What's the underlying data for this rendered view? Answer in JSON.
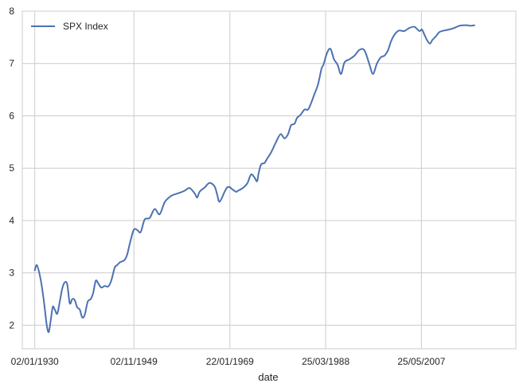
{
  "chart_data": {
    "type": "line",
    "title": "",
    "xlabel": "date",
    "ylabel": "",
    "ylim": [
      1.55,
      8.0
    ],
    "xlim": [
      1927.5,
      2026.3
    ],
    "grid": true,
    "legend_position": "top-left",
    "y_ticks": [
      2,
      3,
      4,
      5,
      6,
      7,
      8
    ],
    "x_ticks": [
      {
        "label": "02/01/1930",
        "year": 1930.0
      },
      {
        "label": "02/11/1949",
        "year": 1949.84
      },
      {
        "label": "22/01/1969",
        "year": 1969.06
      },
      {
        "label": "25/03/1988",
        "year": 1988.23
      },
      {
        "label": "25/05/2007",
        "year": 2007.4
      }
    ],
    "series": [
      {
        "name": "SPX Index",
        "color": "#4c72b0",
        "x": [
          1930.0,
          1930.4,
          1930.9,
          1931.4,
          1931.9,
          1932.4,
          1932.8,
          1933.2,
          1933.6,
          1934.0,
          1934.5,
          1935.0,
          1935.5,
          1936.0,
          1936.5,
          1937.0,
          1937.5,
          1938.0,
          1938.5,
          1939.0,
          1939.5,
          1940.0,
          1940.6,
          1941.2,
          1941.7,
          1942.2,
          1942.7,
          1943.3,
          1944.0,
          1944.7,
          1945.3,
          1946.0,
          1946.5,
          1947.0,
          1947.5,
          1948.0,
          1948.5,
          1949.0,
          1949.8,
          1950.5,
          1951.2,
          1952.0,
          1953.0,
          1954.0,
          1955.0,
          1956.0,
          1957.0,
          1957.5,
          1958.0,
          1959.0,
          1960.0,
          1961.0,
          1962.0,
          1962.5,
          1963.0,
          1964.0,
          1965.0,
          1966.0,
          1966.5,
          1967.0,
          1968.0,
          1968.5,
          1969.0,
          1969.5,
          1970.3,
          1970.7,
          1971.3,
          1972.0,
          1972.6,
          1973.3,
          1974.0,
          1974.5,
          1974.8,
          1975.3,
          1976.0,
          1976.5,
          1977.3,
          1978.3,
          1979.2,
          1980.0,
          1980.7,
          1981.3,
          1982.0,
          1982.5,
          1983.2,
          1984.0,
          1984.7,
          1985.3,
          1986.0,
          1986.7,
          1987.4,
          1987.8,
          1988.5,
          1989.2,
          1989.9,
          1990.6,
          1991.3,
          1992.0,
          1993.0,
          1994.0,
          1995.0,
          1996.0,
          1997.0,
          1997.7,
          1998.5,
          1999.3,
          2000.0,
          2000.7,
          2001.3,
          2002.0,
          2002.7,
          2003.2,
          2004.0,
          2005.0,
          2006.0,
          2007.0,
          2007.5,
          2008.0,
          2008.5,
          2009.1,
          2009.6,
          2010.3,
          2011.0,
          2012.0,
          2013.0,
          2014.0,
          2015.0,
          2016.0,
          2016.6,
          2017.3,
          2018.0
        ],
        "y": [
          3.05,
          3.15,
          3.0,
          2.75,
          2.4,
          2.0,
          1.87,
          2.1,
          2.35,
          2.3,
          2.22,
          2.45,
          2.7,
          2.82,
          2.78,
          2.42,
          2.5,
          2.48,
          2.34,
          2.3,
          2.15,
          2.2,
          2.45,
          2.5,
          2.62,
          2.85,
          2.8,
          2.72,
          2.75,
          2.74,
          2.85,
          3.1,
          3.15,
          3.2,
          3.22,
          3.25,
          3.35,
          3.55,
          3.82,
          3.82,
          3.78,
          4.02,
          4.05,
          4.22,
          4.12,
          4.35,
          4.45,
          4.48,
          4.5,
          4.53,
          4.57,
          4.62,
          4.52,
          4.44,
          4.55,
          4.63,
          4.72,
          4.65,
          4.5,
          4.36,
          4.55,
          4.63,
          4.64,
          4.6,
          4.55,
          4.57,
          4.6,
          4.65,
          4.72,
          4.88,
          4.82,
          4.75,
          4.9,
          5.07,
          5.1,
          5.18,
          5.3,
          5.5,
          5.65,
          5.57,
          5.65,
          5.82,
          5.85,
          5.96,
          6.02,
          6.12,
          6.12,
          6.24,
          6.42,
          6.6,
          6.9,
          6.98,
          7.2,
          7.28,
          7.08,
          6.98,
          6.8,
          7.02,
          7.08,
          7.15,
          7.26,
          7.25,
          6.98,
          6.8,
          7.0,
          7.12,
          7.15,
          7.25,
          7.42,
          7.55,
          7.62,
          7.63,
          7.62,
          7.68,
          7.7,
          7.62,
          7.65,
          7.55,
          7.45,
          7.38,
          7.45,
          7.52,
          7.6,
          7.63,
          7.65,
          7.68,
          7.72,
          7.73,
          7.73,
          7.72,
          7.73
        ],
        "trend_note": ""
      }
    ]
  }
}
